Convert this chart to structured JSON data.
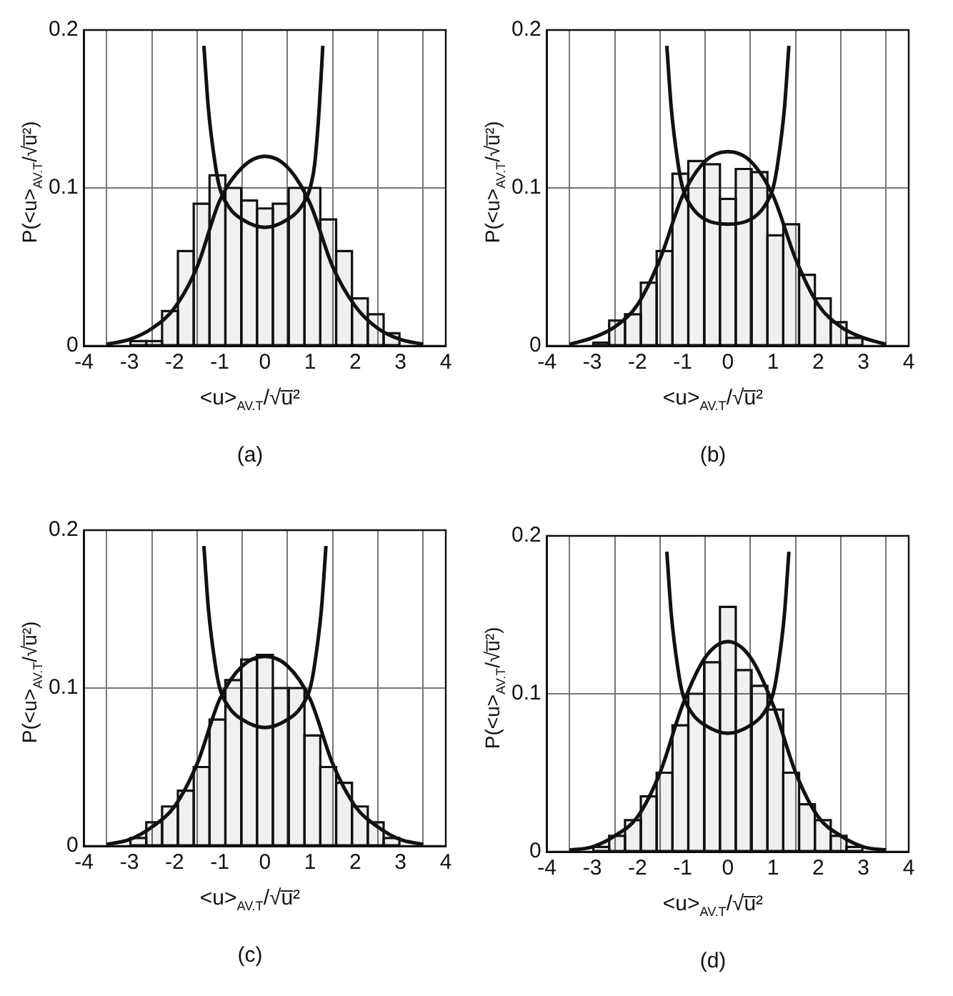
{
  "chart_data": [
    {
      "type": "histogram",
      "title": "(a)",
      "xlabel": "<u>$_{AV.T}$/√u̅²",
      "ylabel": "P(<u>$_{AV.T}$/√u̅²)",
      "bins": [
        -2.975,
        -2.625,
        -2.275,
        -1.925,
        -1.575,
        -1.225,
        -0.875,
        -0.525,
        -0.175,
        0.175,
        0.525,
        0.875,
        1.225,
        1.575,
        1.925,
        2.275,
        2.625,
        2.975
      ],
      "values": [
        0.003,
        0.003,
        0.022,
        0.06,
        0.09,
        0.108,
        0.1,
        0.092,
        0.087,
        0.09,
        0.1,
        0.1,
        0.08,
        0.06,
        0.03,
        0.02,
        0.008
      ],
      "color": "#111111",
      "series": [
        {
          "type": "line",
          "color": "#111111",
          "x": [
            -3.5,
            -3,
            -2.5,
            -2,
            -1.5,
            -1,
            -0.5,
            0,
            0.5,
            1,
            1.5,
            2,
            2.5,
            3,
            3.5
          ],
          "values": [
            0.001,
            0.004,
            0.011,
            0.024,
            0.05,
            0.092,
            0.113,
            0.12,
            0.113,
            0.09,
            0.05,
            0.025,
            0.011,
            0.004,
            0.001
          ]
        },
        {
          "type": "line",
          "color": "#111111",
          "x": [
            -1.35,
            -1.25,
            -1.1,
            -1,
            -0.8,
            -0.5,
            0,
            0.5,
            0.8,
            1,
            1.1,
            1.2,
            1.28
          ],
          "values": [
            0.19,
            0.15,
            0.115,
            0.1,
            0.088,
            0.08,
            0.075,
            0.08,
            0.088,
            0.1,
            0.115,
            0.15,
            0.19
          ]
        }
      ],
      "xlim": [
        -4,
        4
      ],
      "xticks": [
        -4,
        -3,
        -2,
        -1,
        0,
        1,
        2,
        3,
        4
      ],
      "ylim": [
        0,
        0.2
      ],
      "yticks": [
        0,
        0.1,
        0.2
      ],
      "grid": true,
      "legend": false
    },
    {
      "type": "histogram",
      "title": "(b)",
      "xlabel": "<u>$_{AV.T}$/√u̅²",
      "ylabel": "P(<u>$_{AV.T}$/√u̅²)",
      "bins": [
        -2.975,
        -2.625,
        -2.275,
        -1.925,
        -1.575,
        -1.225,
        -0.875,
        -0.525,
        -0.175,
        0.175,
        0.525,
        0.875,
        1.225,
        1.575,
        1.925,
        2.275,
        2.625,
        2.975
      ],
      "values": [
        0.002,
        0.016,
        0.02,
        0.04,
        0.06,
        0.109,
        0.117,
        0.115,
        0.093,
        0.112,
        0.11,
        0.07,
        0.077,
        0.045,
        0.03,
        0.015,
        0.005
      ],
      "color": "#111111",
      "series": [
        {
          "type": "line",
          "color": "#111111",
          "x": [
            -3.5,
            -3,
            -2.5,
            -2,
            -1.5,
            -1,
            -0.5,
            0,
            0.5,
            1,
            1.5,
            2,
            2.5,
            3,
            3.5
          ],
          "values": [
            0.001,
            0.005,
            0.012,
            0.026,
            0.055,
            0.095,
            0.117,
            0.123,
            0.117,
            0.095,
            0.055,
            0.026,
            0.012,
            0.005,
            0.001
          ]
        },
        {
          "type": "line",
          "color": "#111111",
          "x": [
            -1.35,
            -1.25,
            -1.1,
            -1,
            -0.8,
            -0.5,
            0,
            0.5,
            0.8,
            1,
            1.1,
            1.25,
            1.35
          ],
          "values": [
            0.19,
            0.15,
            0.115,
            0.1,
            0.088,
            0.08,
            0.077,
            0.08,
            0.088,
            0.1,
            0.115,
            0.15,
            0.19
          ]
        }
      ],
      "xlim": [
        -4,
        4
      ],
      "xticks": [
        -4,
        -3,
        -2,
        -1,
        0,
        1,
        2,
        3,
        4
      ],
      "ylim": [
        0,
        0.2
      ],
      "yticks": [
        0,
        0.1,
        0.2
      ],
      "grid": true,
      "legend": false
    },
    {
      "type": "histogram",
      "title": "(c)",
      "xlabel": "<u>$_{AV.T}$/√u̅²",
      "ylabel": "P(<u>$_{AV.T}$/√u̅²)",
      "bins": [
        -2.975,
        -2.625,
        -2.275,
        -1.925,
        -1.575,
        -1.225,
        -0.875,
        -0.525,
        -0.175,
        0.175,
        0.525,
        0.875,
        1.225,
        1.575,
        1.925,
        2.275,
        2.625,
        2.975
      ],
      "values": [
        0.005,
        0.015,
        0.025,
        0.035,
        0.05,
        0.08,
        0.105,
        0.118,
        0.121,
        0.1,
        0.1,
        0.07,
        0.05,
        0.04,
        0.025,
        0.015,
        0.005
      ],
      "color": "#111111",
      "series": [
        {
          "type": "line",
          "color": "#111111",
          "x": [
            -3.5,
            -3,
            -2.5,
            -2,
            -1.5,
            -1,
            -0.5,
            0,
            0.5,
            1,
            1.5,
            2,
            2.5,
            3,
            3.5
          ],
          "values": [
            0.001,
            0.004,
            0.012,
            0.025,
            0.052,
            0.093,
            0.114,
            0.12,
            0.114,
            0.093,
            0.052,
            0.025,
            0.012,
            0.004,
            0.001
          ]
        },
        {
          "type": "line",
          "color": "#111111",
          "x": [
            -1.35,
            -1.25,
            -1.1,
            -1,
            -0.8,
            -0.5,
            0,
            0.5,
            0.8,
            1,
            1.1,
            1.25,
            1.35
          ],
          "values": [
            0.19,
            0.15,
            0.115,
            0.1,
            0.088,
            0.08,
            0.075,
            0.08,
            0.088,
            0.1,
            0.115,
            0.15,
            0.19
          ]
        }
      ],
      "xlim": [
        -4,
        4
      ],
      "xticks": [
        -4,
        -3,
        -2,
        -1,
        0,
        1,
        2,
        3,
        4
      ],
      "ylim": [
        0,
        0.2
      ],
      "yticks": [
        0,
        0.1,
        0.2
      ],
      "grid": true,
      "legend": false
    },
    {
      "type": "histogram",
      "title": "(d)",
      "xlabel": "<u>$_{AV.T}$/√u̅²",
      "ylabel": "P(<u>$_{AV.T}$/√u̅²)",
      "bins": [
        -2.975,
        -2.625,
        -2.275,
        -1.925,
        -1.575,
        -1.225,
        -0.875,
        -0.525,
        -0.175,
        0.175,
        0.525,
        0.875,
        1.225,
        1.575,
        1.925,
        2.275,
        2.625,
        2.975
      ],
      "values": [
        0.003,
        0.01,
        0.02,
        0.035,
        0.05,
        0.08,
        0.1,
        0.12,
        0.155,
        0.115,
        0.105,
        0.09,
        0.05,
        0.03,
        0.02,
        0.01,
        0.003
      ],
      "color": "#111111",
      "series": [
        {
          "type": "line",
          "color": "#111111",
          "x": [
            -3.5,
            -3,
            -2.5,
            -2,
            -1.5,
            -1,
            -0.5,
            0,
            0.5,
            1,
            1.5,
            2,
            2.5,
            3,
            3.5
          ],
          "values": [
            0.001,
            0.003,
            0.01,
            0.022,
            0.05,
            0.093,
            0.123,
            0.133,
            0.123,
            0.093,
            0.05,
            0.022,
            0.01,
            0.003,
            0.001
          ]
        },
        {
          "type": "line",
          "color": "#111111",
          "x": [
            -1.35,
            -1.25,
            -1.1,
            -1,
            -0.8,
            -0.5,
            0,
            0.5,
            0.8,
            1,
            1.1,
            1.25,
            1.35
          ],
          "values": [
            0.19,
            0.15,
            0.115,
            0.1,
            0.088,
            0.08,
            0.075,
            0.08,
            0.088,
            0.1,
            0.115,
            0.15,
            0.19
          ]
        }
      ],
      "xlim": [
        -4,
        4
      ],
      "xticks": [
        -4,
        -3,
        -2,
        -1,
        0,
        1,
        2,
        3,
        4
      ],
      "ylim": [
        0,
        0.2
      ],
      "yticks": [
        0,
        0.1,
        0.2
      ],
      "grid": true,
      "legend": false
    }
  ]
}
